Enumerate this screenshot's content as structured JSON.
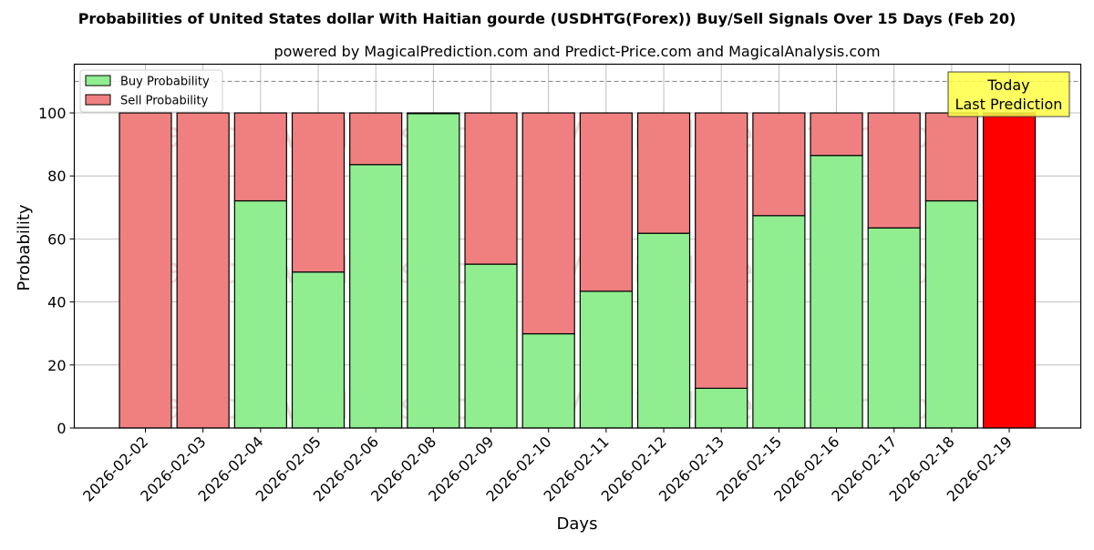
{
  "header": {
    "title": "Probabilities of United States dollar With Haitian gourde (USDHTG(Forex)) Buy/Sell Signals Over 15 Days (Feb 20)",
    "subtitle": "powered by MagicalPrediction.com and Predict-Price.com and MagicalAnalysis.com"
  },
  "legend": {
    "items": [
      {
        "label": "Buy Probability",
        "color": "#90ee90"
      },
      {
        "label": "Sell Probability",
        "color": "#f08080"
      }
    ]
  },
  "annotation": {
    "line1": "Today",
    "line2": "Last Prediction",
    "bg_color": "#ffff44"
  },
  "watermarks": [
    "MagicalAnalysis.com",
    "MagicalPrediction.com"
  ],
  "colors": {
    "buy": "#90ee90",
    "sell": "#f08080",
    "today": "#ff0000",
    "grid": "#b0b0b0",
    "threshold_line": "#808080"
  },
  "chart_data": {
    "type": "bar",
    "stacked": true,
    "title": "Probabilities of United States dollar With Haitian gourde (USDHTG(Forex)) Buy/Sell Signals Over 15 Days (Feb 20)",
    "subtitle": "powered by MagicalPrediction.com and Predict-Price.com and MagicalAnalysis.com",
    "xlabel": "Days",
    "ylabel": "Probability",
    "ylim": [
      0,
      115
    ],
    "yticks": [
      0,
      20,
      40,
      60,
      80,
      100
    ],
    "grid": true,
    "legend_position": "upper left",
    "threshold_line": 110,
    "categories": [
      "2026-02-02",
      "2026-02-03",
      "2026-02-04",
      "2026-02-05",
      "2026-02-06",
      "2026-02-08",
      "2026-02-09",
      "2026-02-10",
      "2026-02-11",
      "2026-02-12",
      "2026-02-13",
      "2026-02-15",
      "2026-02-16",
      "2026-02-17",
      "2026-02-18",
      "2026-02-19"
    ],
    "series": [
      {
        "name": "Buy Probability",
        "values": [
          0,
          0,
          72.1,
          49.5,
          83.6,
          99.8,
          52.0,
          29.9,
          43.4,
          61.8,
          12.6,
          67.4,
          86.5,
          63.5,
          72.1,
          0
        ]
      },
      {
        "name": "Sell Probability",
        "values": [
          100,
          100,
          27.9,
          50.5,
          16.4,
          0.2,
          48.0,
          70.1,
          56.6,
          38.2,
          87.4,
          32.6,
          13.5,
          36.5,
          27.9,
          100
        ]
      }
    ],
    "highlight": {
      "category": "2026-02-19",
      "label": "Today Last Prediction",
      "color": "#ff0000"
    }
  }
}
